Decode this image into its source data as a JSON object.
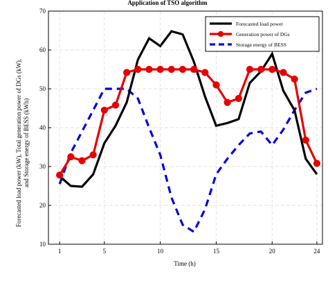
{
  "chart_data": {
    "type": "line",
    "title": "Application of TSO algorithm",
    "xlabel": "Time (h)",
    "ylabel_lines": [
      "Forecasted load power (kW), Total generation power of DGs (kW),",
      "and Storage energy of BESS (kWh)"
    ],
    "xlim": [
      0,
      24.5
    ],
    "ylim": [
      10,
      70
    ],
    "xticks": [
      1,
      5,
      10,
      15,
      20,
      24
    ],
    "yticks": [
      10,
      20,
      30,
      40,
      50,
      60,
      70
    ],
    "grid": true,
    "legend_position": "top-right",
    "x": [
      1,
      2,
      3,
      4,
      5,
      6,
      7,
      8,
      9,
      10,
      11,
      12,
      13,
      14,
      15,
      16,
      17,
      18,
      19,
      20,
      21,
      22,
      23,
      24
    ],
    "series": [
      {
        "name": "Forecasted load power",
        "color": "#000000",
        "style": "solid",
        "marker": "none",
        "values": [
          27.5,
          25.0,
          24.8,
          28.0,
          36.0,
          40.5,
          46.5,
          57.5,
          63.0,
          61.0,
          64.8,
          64.0,
          57.0,
          48.0,
          40.5,
          41.2,
          42.2,
          51.5,
          54.5,
          59.0,
          49.5,
          44.5,
          32.0,
          28.0
        ]
      },
      {
        "name": "Generation power of DGs",
        "color": "#e60000",
        "style": "solid",
        "marker": "circle",
        "values": [
          27.8,
          32.5,
          31.5,
          33.0,
          44.5,
          45.8,
          54.2,
          55.0,
          55.0,
          55.0,
          55.0,
          55.0,
          55.0,
          54.2,
          51.0,
          46.5,
          47.5,
          55.0,
          55.0,
          55.0,
          54.2,
          52.5,
          36.8,
          30.8
        ]
      },
      {
        "name": "Storage energy of BESS",
        "color": "#0000e0",
        "style": "dashed",
        "marker": "none",
        "values": [
          25.5,
          33.5,
          39.0,
          44.5,
          50.0,
          50.0,
          50.0,
          47.5,
          40.0,
          33.0,
          22.0,
          15.0,
          13.2,
          19.0,
          28.0,
          32.0,
          35.5,
          38.5,
          39.0,
          35.5,
          39.5,
          44.5,
          49.0,
          50.0
        ]
      }
    ]
  }
}
